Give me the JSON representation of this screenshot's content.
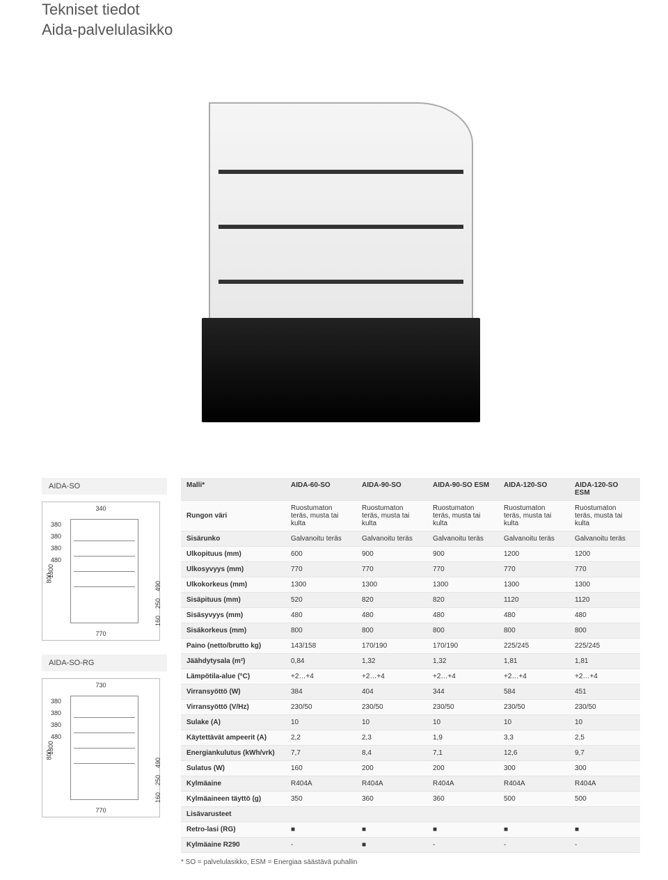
{
  "title": {
    "line1": "Tekniset tiedot",
    "line2": "Aida-palvelulasikko"
  },
  "side_labels": {
    "top": "AIDA-SO",
    "bottom": "AIDA-SO-RG"
  },
  "schematic": {
    "top_dim_a": "340",
    "top_dim_b": "730",
    "bot_dim": "770",
    "v_left": "1300",
    "v_800": "800",
    "stack": [
      "380",
      "380",
      "380",
      "480"
    ],
    "r1": "160",
    "r2": "250",
    "r3": "490"
  },
  "table": {
    "header": [
      "Malli*",
      "AIDA-60-SO",
      "AIDA-90-SO",
      "AIDA-90-SO ESM",
      "AIDA-120-SO",
      "AIDA-120-SO ESM"
    ],
    "rows": [
      [
        "Rungon väri",
        "Ruostumaton teräs, musta tai kulta",
        "Ruostumaton teräs, musta tai kulta",
        "Ruostumaton teräs, musta tai kulta",
        "Ruostumaton teräs, musta tai kulta",
        "Ruostumaton teräs, musta tai kulta"
      ],
      [
        "Sisärunko",
        "Galvanoitu teräs",
        "Galvanoitu teräs",
        "Galvanoitu teräs",
        "Galvanoitu teräs",
        "Galvanoitu teräs"
      ],
      [
        "Ulkopituus (mm)",
        "600",
        "900",
        "900",
        "1200",
        "1200"
      ],
      [
        "Ulkosyvyys (mm)",
        "770",
        "770",
        "770",
        "770",
        "770"
      ],
      [
        "Ulkokorkeus (mm)",
        "1300",
        "1300",
        "1300",
        "1300",
        "1300"
      ],
      [
        "Sisäpituus (mm)",
        "520",
        "820",
        "820",
        "1120",
        "1120"
      ],
      [
        "Sisäsyvyys (mm)",
        "480",
        "480",
        "480",
        "480",
        "480"
      ],
      [
        "Sisäkorkeus (mm)",
        "800",
        "800",
        "800",
        "800",
        "800"
      ],
      [
        "Paino (netto/brutto kg)",
        "143/158",
        "170/190",
        "170/190",
        "225/245",
        "225/245"
      ],
      [
        "Jäähdytysala (m²)",
        "0,84",
        "1,32",
        "1,32",
        "1,81",
        "1,81"
      ],
      [
        "Lämpötila-alue (°C)",
        "+2…+4",
        "+2…+4",
        "+2…+4",
        "+2…+4",
        "+2…+4"
      ],
      [
        "Virransyöttö (W)",
        "384",
        "404",
        "344",
        "584",
        "451"
      ],
      [
        "Virransyöttö (V/Hz)",
        "230/50",
        "230/50",
        "230/50",
        "230/50",
        "230/50"
      ],
      [
        "Sulake (A)",
        "10",
        "10",
        "10",
        "10",
        "10"
      ],
      [
        "Käytettävät ampeerit (A)",
        "2,2",
        "2,3",
        "1,9",
        "3,3",
        "2,5"
      ],
      [
        "Energiankulutus (kWh/vrk)",
        "7,7",
        "8,4",
        "7,1",
        "12,6",
        "9,7"
      ],
      [
        "Sulatus (W)",
        "160",
        "200",
        "200",
        "300",
        "300"
      ],
      [
        "Kylmäaine",
        "R404A",
        "R404A",
        "R404A",
        "R404A",
        "R404A"
      ],
      [
        "Kylmäaineen täyttö (g)",
        "350",
        "360",
        "360",
        "500",
        "500"
      ],
      [
        "Lisävarusteet",
        "",
        "",
        "",
        "",
        ""
      ],
      [
        "Retro-lasi (RG)",
        "■",
        "■",
        "■",
        "■",
        "■"
      ],
      [
        "Kylmäaine R290",
        "-",
        "■",
        "-",
        "-",
        "-"
      ]
    ]
  },
  "footnote": "* SO = palvelulasikko, ESM = Energiaa säästävä puhallin",
  "colors": {
    "header_bg": "#ececec",
    "row_odd": "#fafafa",
    "row_even": "#f0f0f0",
    "border": "#e5e5e5",
    "title_color": "#555555"
  }
}
